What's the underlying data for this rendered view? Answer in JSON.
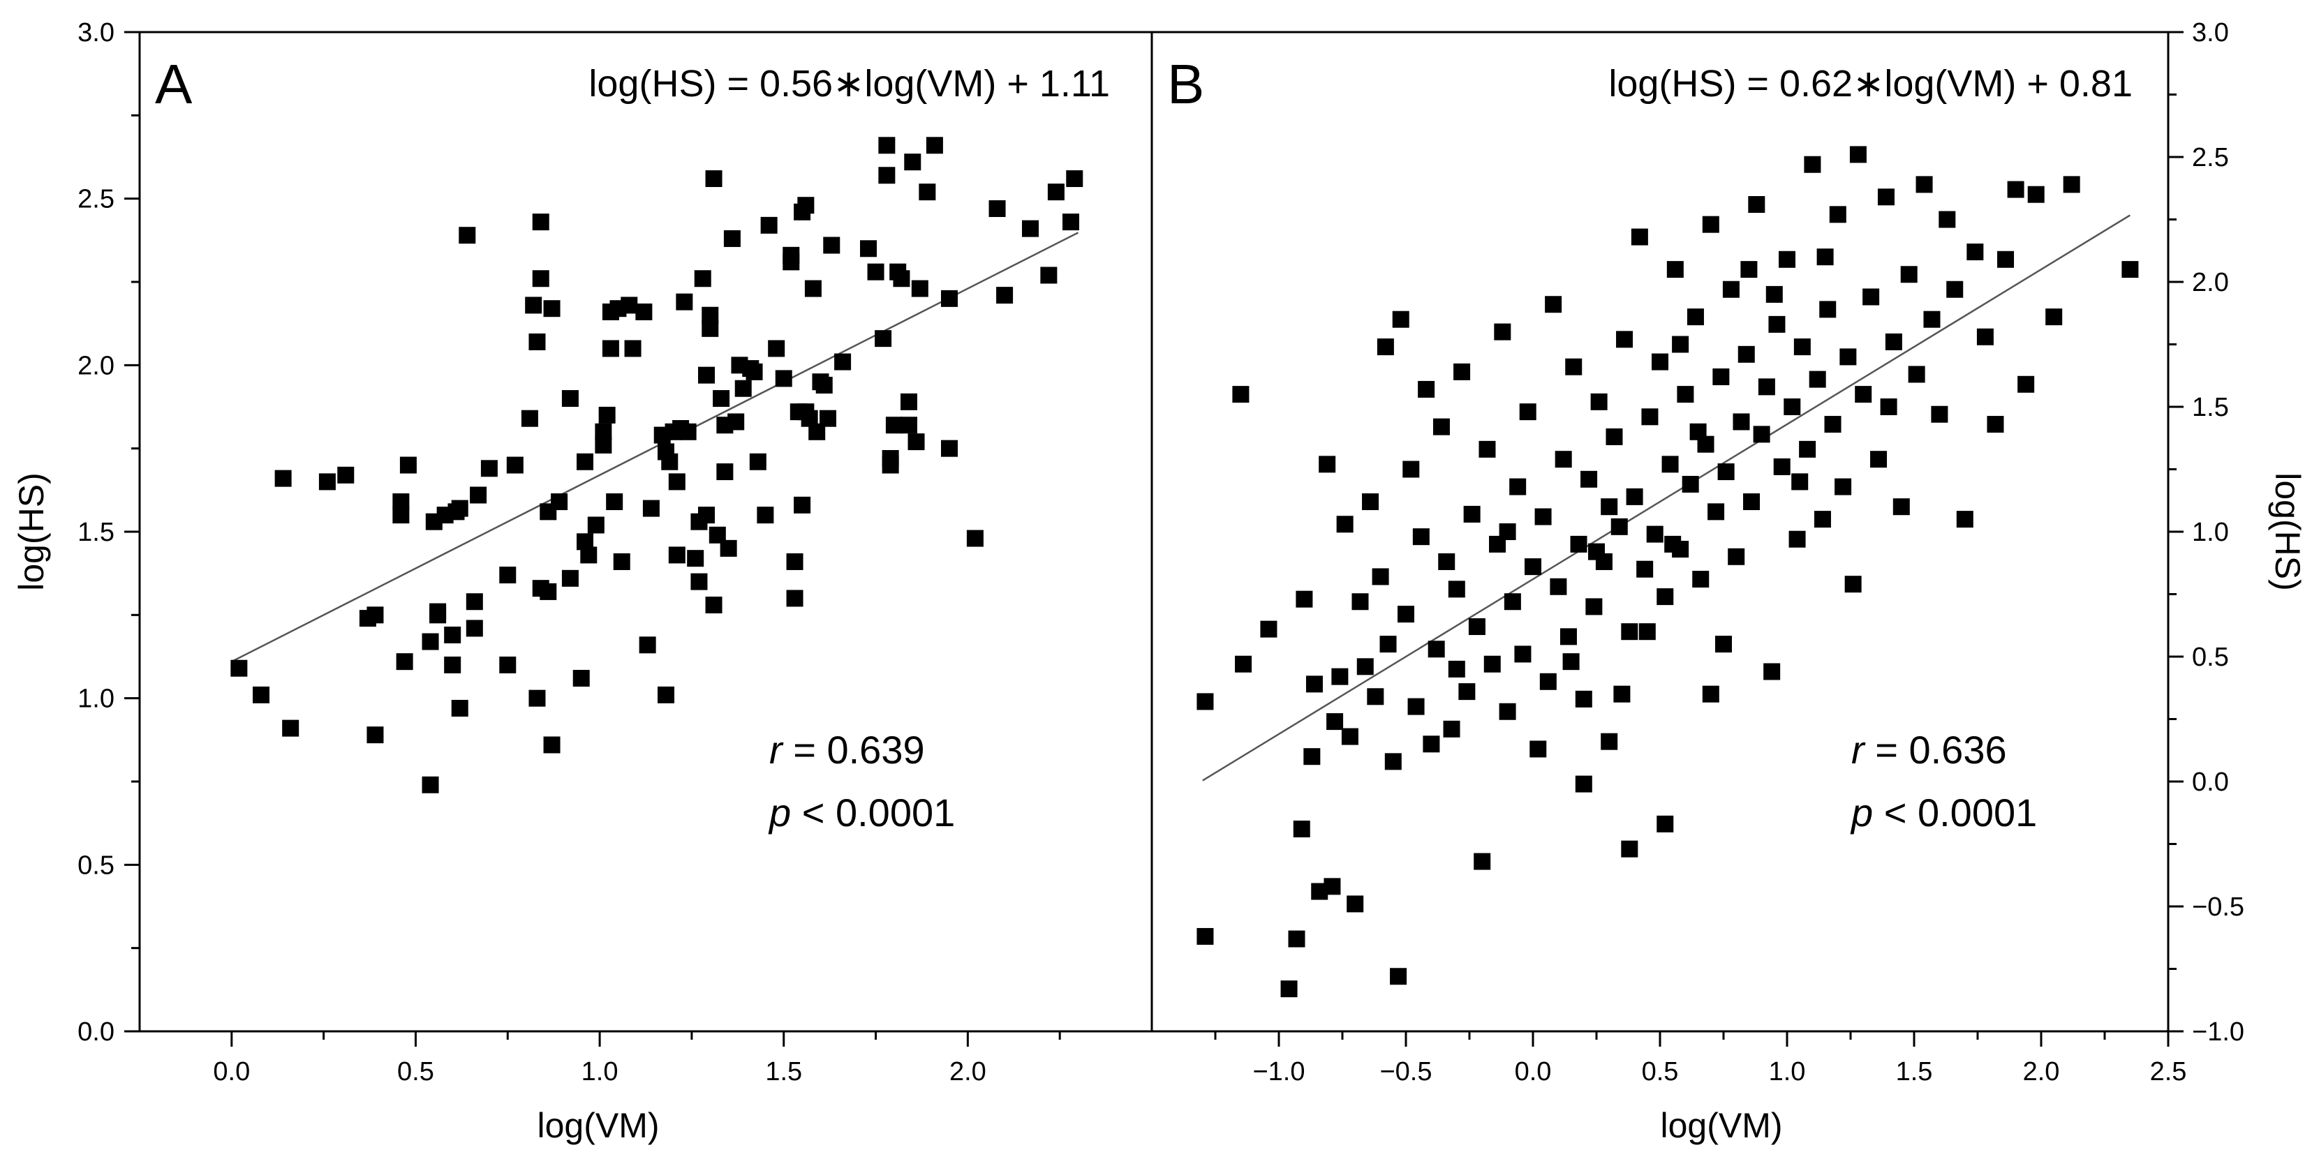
{
  "chart_data": [
    {
      "type": "scatter",
      "panel_label": "A",
      "equation": "log(HS) = 0.56∗log(VM) + 1.11",
      "r_label": "r",
      "r_value": " = 0.639",
      "p_label": "p",
      "p_value": " < 0.0001",
      "xlabel": "log(VM)",
      "ylabel": "log(HS)",
      "xlim": [
        -0.25,
        2.5
      ],
      "ylim": [
        0.0,
        3.0
      ],
      "xticks": [
        "0.0",
        "0.5",
        "1.0",
        "1.5",
        "2.0"
      ],
      "yticks": [
        "0.0",
        "0.5",
        "1.0",
        "1.5",
        "2.0",
        "2.5",
        "3.0"
      ],
      "fit": {
        "slope": 0.56,
        "intercept": 1.11,
        "x_range": [
          0.0,
          2.3
        ]
      },
      "marker_color": "#000000",
      "fit_color": "#555555",
      "points": [
        [
          0.02,
          1.09
        ],
        [
          0.08,
          1.01
        ],
        [
          0.14,
          1.66
        ],
        [
          0.16,
          0.91
        ],
        [
          0.26,
          1.65
        ],
        [
          0.31,
          1.67
        ],
        [
          0.37,
          1.24
        ],
        [
          0.39,
          1.25
        ],
        [
          0.39,
          0.89
        ],
        [
          0.46,
          1.59
        ],
        [
          0.46,
          1.55
        ],
        [
          0.47,
          1.11
        ],
        [
          0.48,
          1.7
        ],
        [
          0.54,
          0.74
        ],
        [
          0.54,
          1.17
        ],
        [
          0.55,
          1.53
        ],
        [
          0.56,
          1.26
        ],
        [
          0.56,
          1.25
        ],
        [
          0.58,
          1.55
        ],
        [
          0.6,
          1.1
        ],
        [
          0.6,
          1.19
        ],
        [
          0.61,
          1.56
        ],
        [
          0.62,
          1.57
        ],
        [
          0.62,
          0.97
        ],
        [
          0.64,
          2.39
        ],
        [
          0.66,
          1.21
        ],
        [
          0.66,
          1.29
        ],
        [
          0.67,
          1.61
        ],
        [
          0.7,
          1.69
        ],
        [
          0.75,
          1.1
        ],
        [
          0.75,
          1.37
        ],
        [
          0.77,
          1.7
        ],
        [
          0.81,
          1.84
        ],
        [
          0.82,
          2.18
        ],
        [
          0.83,
          2.07
        ],
        [
          0.83,
          1.0
        ],
        [
          0.84,
          1.33
        ],
        [
          0.84,
          2.26
        ],
        [
          0.84,
          2.43
        ],
        [
          0.86,
          1.32
        ],
        [
          0.86,
          1.56
        ],
        [
          0.87,
          2.17
        ],
        [
          0.87,
          0.86
        ],
        [
          0.89,
          1.59
        ],
        [
          0.92,
          1.36
        ],
        [
          0.92,
          1.9
        ],
        [
          0.95,
          1.06
        ],
        [
          0.96,
          1.71
        ],
        [
          0.96,
          1.47
        ],
        [
          0.97,
          1.43
        ],
        [
          0.99,
          1.52
        ],
        [
          1.01,
          1.76
        ],
        [
          1.01,
          1.8
        ],
        [
          1.02,
          1.85
        ],
        [
          1.03,
          2.16
        ],
        [
          1.03,
          2.05
        ],
        [
          1.04,
          1.59
        ],
        [
          1.05,
          2.17
        ],
        [
          1.06,
          1.41
        ],
        [
          1.08,
          2.18
        ],
        [
          1.09,
          2.05
        ],
        [
          1.12,
          2.16
        ],
        [
          1.13,
          1.16
        ],
        [
          1.14,
          1.57
        ],
        [
          1.17,
          1.79
        ],
        [
          1.18,
          1.01
        ],
        [
          1.18,
          1.74
        ],
        [
          1.19,
          1.71
        ],
        [
          1.2,
          1.8
        ],
        [
          1.21,
          1.43
        ],
        [
          1.21,
          1.65
        ],
        [
          1.22,
          1.81
        ],
        [
          1.23,
          2.19
        ],
        [
          1.24,
          1.8
        ],
        [
          1.26,
          1.42
        ],
        [
          1.27,
          1.53
        ],
        [
          1.27,
          1.35
        ],
        [
          1.28,
          2.26
        ],
        [
          1.29,
          1.97
        ],
        [
          1.29,
          1.55
        ],
        [
          1.3,
          2.15
        ],
        [
          1.3,
          2.11
        ],
        [
          1.31,
          1.28
        ],
        [
          1.32,
          1.49
        ],
        [
          1.33,
          1.9
        ],
        [
          1.34,
          1.68
        ],
        [
          1.35,
          1.45
        ],
        [
          1.36,
          2.38
        ],
        [
          1.37,
          1.83
        ],
        [
          1.38,
          2.0
        ],
        [
          1.39,
          1.93
        ],
        [
          1.41,
          1.99
        ],
        [
          1.43,
          1.71
        ],
        [
          1.45,
          1.55
        ],
        [
          1.46,
          2.42
        ],
        [
          1.48,
          2.05
        ],
        [
          1.5,
          1.96
        ],
        [
          1.52,
          2.33
        ],
        [
          1.52,
          2.31
        ],
        [
          1.53,
          1.41
        ],
        [
          1.53,
          1.3
        ],
        [
          1.54,
          1.86
        ],
        [
          1.55,
          1.58
        ],
        [
          1.55,
          2.46
        ],
        [
          1.56,
          1.86
        ],
        [
          1.57,
          1.84
        ],
        [
          1.58,
          2.23
        ],
        [
          1.59,
          1.8
        ],
        [
          1.6,
          1.95
        ],
        [
          1.61,
          1.94
        ],
        [
          1.62,
          1.84
        ],
        [
          1.63,
          2.36
        ],
        [
          1.66,
          2.01
        ],
        [
          1.73,
          2.35
        ],
        [
          1.75,
          2.28
        ],
        [
          1.77,
          2.08
        ],
        [
          1.78,
          2.57
        ],
        [
          1.78,
          2.66
        ],
        [
          1.79,
          1.72
        ],
        [
          1.79,
          1.7
        ],
        [
          1.8,
          1.82
        ],
        [
          1.81,
          2.28
        ],
        [
          1.82,
          2.26
        ],
        [
          1.84,
          1.82
        ],
        [
          1.84,
          1.89
        ],
        [
          1.85,
          2.61
        ],
        [
          1.86,
          1.77
        ],
        [
          1.87,
          2.23
        ],
        [
          1.89,
          2.52
        ],
        [
          1.91,
          2.66
        ],
        [
          1.95,
          1.75
        ],
        [
          1.95,
          2.2
        ],
        [
          2.02,
          1.48
        ],
        [
          2.08,
          2.47
        ],
        [
          2.1,
          2.21
        ],
        [
          2.17,
          2.41
        ],
        [
          2.22,
          2.27
        ],
        [
          2.24,
          2.52
        ],
        [
          2.28,
          2.43
        ],
        [
          2.29,
          2.56
        ],
        [
          1.31,
          2.56
        ],
        [
          1.56,
          2.48
        ],
        [
          1.42,
          1.98
        ],
        [
          1.34,
          1.82
        ]
      ]
    },
    {
      "type": "scatter",
      "panel_label": "B",
      "equation": "log(HS) = 0.62∗log(VM) + 0.81",
      "r_label": "r",
      "r_value": " = 0.636",
      "p_label": "p",
      "p_value": " < 0.0001",
      "xlabel": "log(VM)",
      "ylabel": "log(HS)",
      "xlim": [
        -1.5,
        2.5
      ],
      "ylim": [
        -1.0,
        3.0
      ],
      "xticks": [
        "−1.0",
        "−0.5",
        "0.0",
        "0.5",
        "1.0",
        "1.5",
        "2.0",
        "2.5"
      ],
      "yticks": [
        "−1.0",
        "−0.5",
        "0.0",
        "0.5",
        "1.0",
        "1.5",
        "2.0",
        "2.5",
        "3.0"
      ],
      "fit": {
        "slope": 0.62,
        "intercept": 0.81,
        "x_range": [
          -1.3,
          2.35
        ]
      },
      "marker_color": "#000000",
      "fit_color": "#555555",
      "points": [
        [
          -1.29,
          0.32
        ],
        [
          -1.29,
          -0.62
        ],
        [
          -1.15,
          1.55
        ],
        [
          -1.14,
          0.47
        ],
        [
          -1.04,
          0.61
        ],
        [
          -0.96,
          -0.83
        ],
        [
          -0.93,
          -0.63
        ],
        [
          -0.91,
          -0.19
        ],
        [
          -0.9,
          0.73
        ],
        [
          -0.87,
          0.1
        ],
        [
          -0.86,
          0.39
        ],
        [
          -0.84,
          -0.44
        ],
        [
          -0.81,
          1.27
        ],
        [
          -0.79,
          -0.42
        ],
        [
          -0.78,
          0.24
        ],
        [
          -0.76,
          0.42
        ],
        [
          -0.74,
          1.03
        ],
        [
          -0.72,
          0.18
        ],
        [
          -0.7,
          -0.49
        ],
        [
          -0.68,
          0.72
        ],
        [
          -0.66,
          0.46
        ],
        [
          -0.64,
          1.12
        ],
        [
          -0.62,
          0.34
        ],
        [
          -0.6,
          0.82
        ],
        [
          -0.58,
          1.74
        ],
        [
          -0.57,
          0.55
        ],
        [
          -0.55,
          0.08
        ],
        [
          -0.53,
          -0.78
        ],
        [
          -0.52,
          1.85
        ],
        [
          -0.5,
          0.67
        ],
        [
          -0.48,
          1.25
        ],
        [
          -0.46,
          0.3
        ],
        [
          -0.44,
          0.98
        ],
        [
          -0.42,
          1.57
        ],
        [
          -0.4,
          0.15
        ],
        [
          -0.38,
          0.53
        ],
        [
          -0.36,
          1.42
        ],
        [
          -0.34,
          0.88
        ],
        [
          -0.32,
          0.21
        ],
        [
          -0.3,
          0.77
        ],
        [
          -0.28,
          1.64
        ],
        [
          -0.26,
          0.36
        ],
        [
          -0.24,
          1.07
        ],
        [
          -0.22,
          0.62
        ],
        [
          -0.2,
          -0.32
        ],
        [
          -0.18,
          1.33
        ],
        [
          -0.16,
          0.47
        ],
        [
          -0.14,
          0.95
        ],
        [
          -0.12,
          1.8
        ],
        [
          -0.1,
          0.28
        ],
        [
          -0.08,
          0.72
        ],
        [
          -0.06,
          1.18
        ],
        [
          -0.04,
          0.51
        ],
        [
          -0.02,
          1.48
        ],
        [
          0.0,
          0.86
        ],
        [
          0.02,
          0.13
        ],
        [
          0.04,
          1.06
        ],
        [
          0.06,
          0.4
        ],
        [
          0.08,
          1.91
        ],
        [
          0.1,
          0.78
        ],
        [
          0.12,
          1.29
        ],
        [
          0.14,
          0.58
        ],
        [
          0.16,
          1.66
        ],
        [
          0.18,
          0.95
        ],
        [
          0.2,
          0.33
        ],
        [
          0.22,
          1.21
        ],
        [
          0.24,
          0.7
        ],
        [
          0.26,
          1.52
        ],
        [
          0.28,
          0.88
        ],
        [
          0.3,
          0.16
        ],
        [
          0.32,
          1.38
        ],
        [
          0.34,
          1.02
        ],
        [
          0.36,
          1.77
        ],
        [
          0.38,
          0.6
        ],
        [
          0.4,
          1.14
        ],
        [
          0.42,
          2.18
        ],
        [
          0.44,
          0.85
        ],
        [
          0.46,
          1.46
        ],
        [
          0.48,
          0.99
        ],
        [
          0.5,
          1.68
        ],
        [
          0.52,
          0.74
        ],
        [
          0.54,
          1.27
        ],
        [
          0.56,
          2.05
        ],
        [
          0.58,
          0.93
        ],
        [
          0.6,
          1.55
        ],
        [
          0.62,
          1.19
        ],
        [
          0.64,
          1.86
        ],
        [
          0.66,
          0.81
        ],
        [
          0.68,
          1.35
        ],
        [
          0.7,
          2.23
        ],
        [
          0.72,
          1.08
        ],
        [
          0.74,
          1.62
        ],
        [
          0.76,
          1.24
        ],
        [
          0.78,
          1.97
        ],
        [
          0.8,
          0.9
        ],
        [
          0.82,
          1.44
        ],
        [
          0.84,
          1.71
        ],
        [
          0.86,
          1.12
        ],
        [
          0.88,
          2.31
        ],
        [
          0.9,
          1.39
        ],
        [
          0.92,
          1.58
        ],
        [
          0.94,
          0.44
        ],
        [
          0.96,
          1.83
        ],
        [
          0.98,
          1.26
        ],
        [
          1.0,
          2.09
        ],
        [
          1.02,
          1.5
        ],
        [
          1.04,
          0.97
        ],
        [
          1.06,
          1.74
        ],
        [
          1.08,
          1.33
        ],
        [
          1.1,
          2.47
        ],
        [
          1.12,
          1.61
        ],
        [
          1.14,
          1.05
        ],
        [
          1.16,
          1.89
        ],
        [
          1.18,
          1.43
        ],
        [
          1.2,
          2.27
        ],
        [
          1.22,
          1.18
        ],
        [
          1.24,
          1.7
        ],
        [
          1.26,
          0.79
        ],
        [
          1.28,
          2.51
        ],
        [
          1.3,
          1.55
        ],
        [
          1.33,
          1.94
        ],
        [
          1.36,
          1.29
        ],
        [
          1.39,
          2.34
        ],
        [
          1.42,
          1.76
        ],
        [
          1.45,
          1.1
        ],
        [
          1.48,
          2.03
        ],
        [
          1.51,
          1.63
        ],
        [
          1.54,
          2.39
        ],
        [
          1.57,
          1.85
        ],
        [
          1.6,
          1.47
        ],
        [
          1.63,
          2.25
        ],
        [
          1.66,
          1.97
        ],
        [
          1.7,
          1.05
        ],
        [
          1.74,
          2.12
        ],
        [
          1.78,
          1.78
        ],
        [
          1.82,
          1.43
        ],
        [
          1.86,
          2.09
        ],
        [
          1.9,
          2.37
        ],
        [
          1.94,
          1.59
        ],
        [
          1.98,
          2.35
        ],
        [
          2.05,
          1.86
        ],
        [
          2.12,
          2.39
        ],
        [
          2.35,
          2.05
        ],
        [
          0.2,
          -0.01
        ],
        [
          0.38,
          -0.27
        ],
        [
          0.52,
          -0.17
        ],
        [
          0.15,
          0.48
        ],
        [
          0.55,
          0.95
        ],
        [
          0.65,
          1.4
        ],
        [
          0.45,
          0.6
        ],
        [
          0.3,
          1.1
        ],
        [
          0.75,
          0.55
        ],
        [
          0.85,
          2.05
        ],
        [
          -0.1,
          1.0
        ],
        [
          1.4,
          1.5
        ],
        [
          0.95,
          1.95
        ],
        [
          0.35,
          0.35
        ],
        [
          -0.3,
          0.45
        ],
        [
          1.15,
          2.1
        ],
        [
          0.58,
          1.75
        ],
        [
          0.25,
          0.92
        ],
        [
          0.7,
          0.35
        ],
        [
          1.05,
          1.2
        ]
      ]
    }
  ]
}
